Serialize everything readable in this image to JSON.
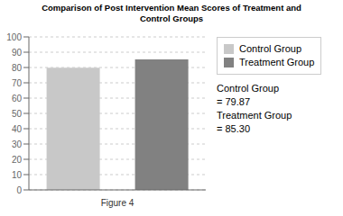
{
  "chart_data": {
    "type": "bar",
    "title": "Comparison of Post Intervention Mean Scores of Treatment and\nControl Groups",
    "xlabel": "Figure 4",
    "categories": [
      "Control Group",
      "Treatment Group"
    ],
    "values": [
      79.87,
      85.3
    ],
    "colors": [
      "#c8c8c8",
      "#818181"
    ],
    "ylim": [
      0,
      100
    ],
    "yticks": [
      0,
      10,
      20,
      30,
      40,
      50,
      60,
      70,
      80,
      90,
      100
    ],
    "grid": true,
    "legend": "right",
    "tick_labels": "y",
    "annotation": "Control Group\n= 79.87\nTreatment Group\n= 85.30"
  }
}
